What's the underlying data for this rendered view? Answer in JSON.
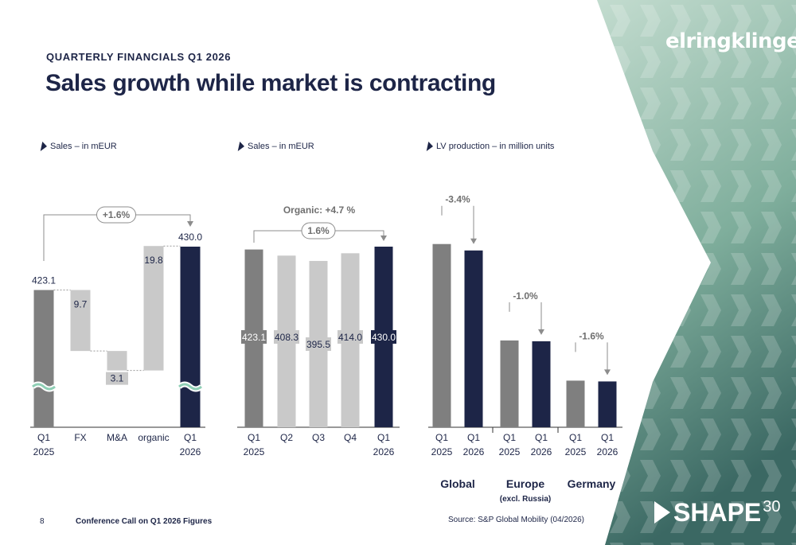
{
  "header": {
    "kicker": "QUARTERLY FINANCIALS Q1 2026",
    "title": "Sales growth while market is contracting",
    "logo": "elringklinger"
  },
  "panels": [
    {
      "label": "Sales – in mEUR"
    },
    {
      "label": "Sales – in mEUR"
    },
    {
      "label": "LV production – in million units"
    }
  ],
  "chart_data": [
    {
      "type": "bar",
      "subtype": "waterfall",
      "title": "Sales – in mEUR",
      "categories": [
        "Q1\n2025",
        "FX",
        "M&A",
        "organic",
        "Q1\n2026"
      ],
      "values": [
        423.1,
        -9.7,
        -3.1,
        19.8,
        430.0
      ],
      "labels": [
        "423.1",
        "9.7",
        "3.1",
        "19.8",
        "430.0"
      ],
      "annotation": "+1.6%",
      "axis_break": true,
      "colors": {
        "Q1 2025": "#7f7f7f",
        "bridge": "#c9c9c9",
        "Q1 2026": "#1d2547"
      }
    },
    {
      "type": "bar",
      "title": "Sales – in mEUR",
      "categories": [
        "Q1\n2025",
        "Q2",
        "Q3",
        "Q4",
        "Q1\n2026"
      ],
      "values": [
        423.1,
        408.3,
        395.5,
        414.0,
        430.0
      ],
      "labels": [
        "423.1",
        "408.3",
        "395.5",
        "414.0",
        "430.0"
      ],
      "annotation_top": "Organic: +4.7 %",
      "annotation": "1.6%",
      "colors": [
        "#7f7f7f",
        "#c9c9c9",
        "#c9c9c9",
        "#c9c9c9",
        "#1d2547"
      ]
    },
    {
      "type": "bar",
      "title": "LV production – in million units",
      "groups": [
        {
          "name": "Global",
          "sublabel": "",
          "categories": [
            "Q1\n2025",
            "Q1\n2026"
          ],
          "change": "-3.4%",
          "values": [
            22.8,
            22.0
          ]
        },
        {
          "name": "Europe",
          "sublabel": "(excl. Russia)",
          "categories": [
            "Q1\n2025",
            "Q1\n2026"
          ],
          "change": "-1.0%",
          "values": [
            10.8,
            10.7
          ]
        },
        {
          "name": "Germany",
          "sublabel": "",
          "categories": [
            "Q1\n2025",
            "Q1\n2026"
          ],
          "change": "-1.6%",
          "values": [
            5.8,
            5.7
          ]
        }
      ],
      "colors": [
        "#7f7f7f",
        "#1d2547"
      ]
    }
  ],
  "footer": {
    "page_number": "8",
    "text": "Conference Call on Q1 2026 Figures",
    "source": "Source: S&P Global Mobility (04/2026)",
    "brand_word": "SHAPE",
    "brand_num": "30"
  },
  "colors": {
    "navy": "#1d2547",
    "dark_grey": "#7f7f7f",
    "light_grey": "#c9c9c9",
    "green_light": "#b7d4c4",
    "green_dark": "#3f6e63"
  }
}
